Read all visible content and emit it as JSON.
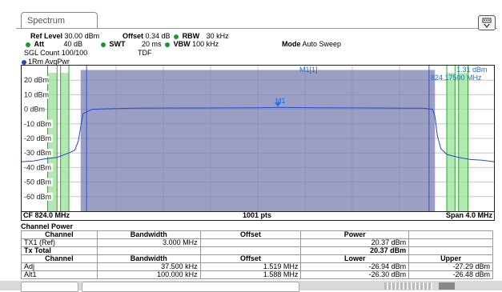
{
  "tab": {
    "label": "Spectrum"
  },
  "header": {
    "ref_level_label": "Ref Level",
    "ref_level_value": "30.00 dBm",
    "offset_label": "Offset",
    "offset_value": "0.34 dB",
    "rbw_label": "RBW",
    "rbw_value": "30 kHz",
    "att_label": "Att",
    "att_value": "40 dB",
    "swt_label": "SWT",
    "swt_value": "20 ms",
    "vbw_label": "VBW",
    "vbw_value": "100 kHz",
    "mode_label": "Mode",
    "mode_value": "Auto Sweep",
    "sgl_count": "SGL Count 100/100",
    "tdf": "TDF"
  },
  "trace_label": "1Rm AvgPwr",
  "marker": {
    "name": "M1[1]",
    "level": "1.31 dBm",
    "freq": "824.17500 MHz",
    "plot_label": "M1"
  },
  "chart_data": {
    "type": "line",
    "ylim": [
      -70,
      30
    ],
    "xlim": [
      822.0,
      826.0
    ],
    "y_ticks": [
      "20 dBm",
      "10 dBm",
      "0 dBm",
      "-10 dBm",
      "-20 dBm",
      "-30 dBm",
      "-40 dBm",
      "-50 dBm",
      "-60 dBm"
    ],
    "center_label": "CF 824.0 MHz",
    "points_label": "1001 pts",
    "span_label": "Span 4.0 MHz",
    "series": [
      {
        "x": [
          822.0,
          822.1,
          822.2,
          822.3,
          822.4,
          822.45,
          822.48,
          822.5,
          822.52,
          822.6,
          822.8,
          823.0,
          823.5,
          824.0,
          824.17,
          824.5,
          825.0,
          825.4,
          825.48,
          825.5,
          825.52,
          825.55,
          825.6,
          825.7,
          825.8,
          825.9,
          826.0
        ],
        "y": [
          -36,
          -35.5,
          -34,
          -33,
          -30,
          -28,
          -22,
          -12,
          -3,
          0,
          0.5,
          0.8,
          0.9,
          1.0,
          1.31,
          1.0,
          0.9,
          0.7,
          0,
          -5,
          -18,
          -27,
          -31,
          -33,
          -34.5,
          -35,
          -36
        ]
      }
    ]
  },
  "channel_power": {
    "title": "Channel Power",
    "headers1": [
      "Channel",
      "Bandwidth",
      "Offset",
      "Power",
      ""
    ],
    "rows1": [
      [
        "TX1 (Ref)",
        "3.000 MHz",
        "",
        "20.37 dBm",
        ""
      ]
    ],
    "tx_total_label": "Tx Total",
    "tx_total_value": "20.37 dBm",
    "headers2": [
      "Channel",
      "Bandwidth",
      "Offset",
      "Lower",
      "Upper"
    ],
    "rows2": [
      [
        "Adj",
        "37.500 kHz",
        "1.519 MHz",
        "-26.94 dBm",
        "-27.29 dBm"
      ],
      [
        "Alt1",
        "100.000 kHz",
        "1.588 MHz",
        "-26.30 dBm",
        "-26.48 dBm"
      ]
    ]
  }
}
